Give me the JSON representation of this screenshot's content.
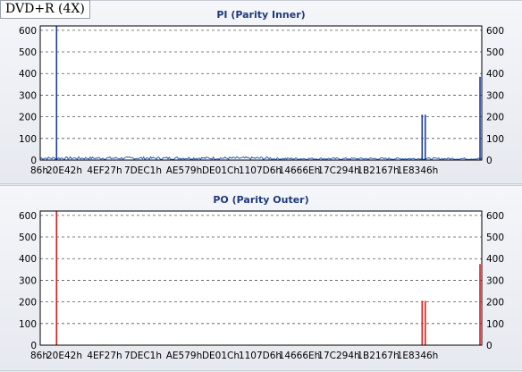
{
  "disc_label": "DVD+R (4X)",
  "chart_data": [
    {
      "id": "pi",
      "type": "bar",
      "title": "PI (Parity Inner)",
      "color": "#1f3f9a",
      "noise_color": "#2a5aa8",
      "ylim": [
        0,
        620
      ],
      "yticks": [
        0,
        100,
        200,
        300,
        400,
        500,
        600
      ],
      "grid": true,
      "x_ticks": [
        "86h",
        "20E42h",
        "4EF27h",
        "7DEC1h",
        "AE579h",
        "DE01Ch",
        "1107D6h",
        "14666Eh",
        "17C294h",
        "1B2167h",
        "1E8346h"
      ],
      "spikes": [
        {
          "x": 0.037,
          "y": 620
        },
        {
          "x": 0.865,
          "y": 210
        },
        {
          "x": 0.872,
          "y": 210
        },
        {
          "x": 0.996,
          "y": 385
        }
      ],
      "baseline_level": 8
    },
    {
      "id": "po",
      "type": "bar",
      "title": "PO (Parity Outer)",
      "color": "#d42020",
      "noise_color": "#d42020",
      "ylim": [
        0,
        620
      ],
      "yticks": [
        0,
        100,
        200,
        300,
        400,
        500,
        600
      ],
      "grid": true,
      "x_ticks": [
        "86h",
        "20E42h",
        "4EF27h",
        "7DEC1h",
        "AE579h",
        "DE01Ch",
        "1107D6h",
        "14666Eh",
        "17C294h",
        "1B2167h",
        "1E8346h"
      ],
      "spikes": [
        {
          "x": 0.037,
          "y": 620
        },
        {
          "x": 0.865,
          "y": 205
        },
        {
          "x": 0.872,
          "y": 205
        },
        {
          "x": 0.996,
          "y": 375
        }
      ],
      "baseline_level": 0
    }
  ]
}
